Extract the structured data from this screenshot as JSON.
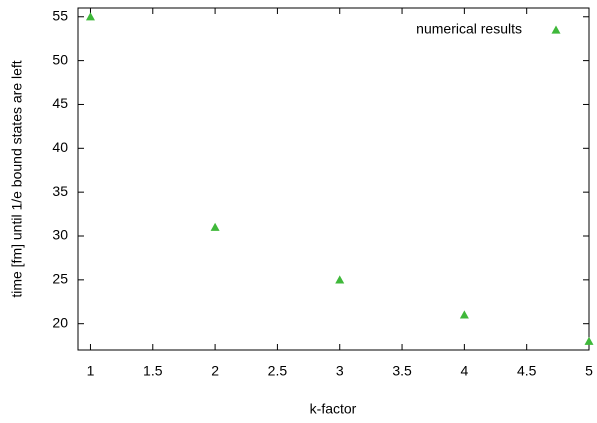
{
  "chart_data": {
    "type": "scatter",
    "x_label": "k-factor",
    "y_label": "time [fm] until 1/e bound states are left",
    "series": [
      {
        "name": "numerical results",
        "color": "#3fb83a",
        "x": [
          1,
          2,
          3,
          4,
          5
        ],
        "values": [
          55,
          31,
          25,
          21,
          18
        ]
      }
    ],
    "xlim": [
      0.9,
      5
    ],
    "xticks": [
      1,
      1.5,
      2,
      2.5,
      3,
      3.5,
      4,
      4.5,
      5
    ],
    "ylim": [
      17,
      56
    ],
    "yticks": [
      20,
      25,
      30,
      35,
      40,
      45,
      50,
      55
    ],
    "legend": "top-right",
    "grid": false
  }
}
